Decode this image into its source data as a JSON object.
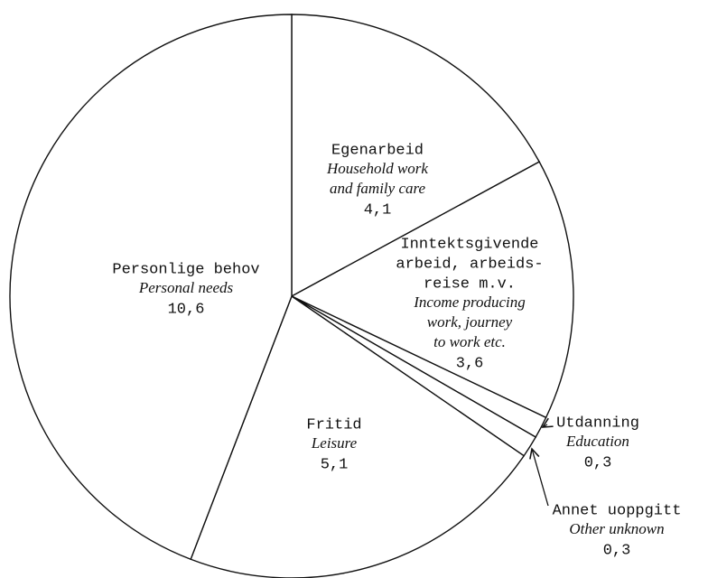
{
  "chart_data": {
    "type": "pie",
    "slices": [
      {
        "name": [
          "Egenarbeid"
        ],
        "name_en": [
          "Household work",
          "and family care"
        ]
      },
      {
        "name": [
          "Inntektsgivende",
          "arbeid, arbeids-",
          "reise m.v."
        ],
        "name_en": [
          "Income producing",
          "work, journey",
          "to work etc."
        ]
      },
      {
        "name": [
          "Utdanning"
        ],
        "name_en": [
          "Education"
        ]
      },
      {
        "name": [
          "Annet uoppgitt"
        ],
        "name_en": [
          "Other unknown"
        ]
      },
      {
        "name": [
          "Fritid"
        ],
        "name_en": [
          "Leisure"
        ]
      },
      {
        "name": [
          "Personlige behov"
        ],
        "name_en": [
          "Personal needs"
        ]
      }
    ],
    "values": [
      4.1,
      3.6,
      0.3,
      0.3,
      5.1,
      10.6
    ],
    "value_labels": [
      "4,1",
      "3,6",
      "0,3",
      "0,3",
      "5,1",
      "10,6"
    ],
    "color": "#ffffff"
  }
}
